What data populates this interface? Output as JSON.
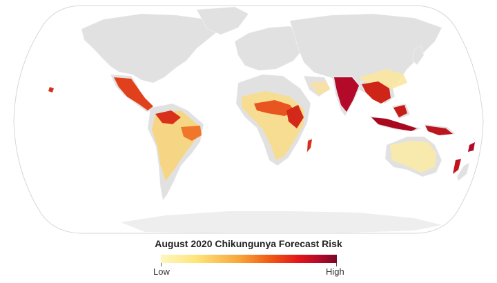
{
  "legend": {
    "title": "August 2020 Chikungunya Forecast Risk",
    "low_label": "Low",
    "high_label": "High",
    "gradient_colors": [
      "#fff6c0",
      "#fde57a",
      "#f7a43a",
      "#f05a14",
      "#e3161a",
      "#b30a2a",
      "#7d0726"
    ]
  },
  "map": {
    "land_color": "#e1e1e1",
    "antarctica_color": "#eeeeee",
    "ocean_color": "#ffffff",
    "graticule_border_color": "#d6d6d6"
  }
}
